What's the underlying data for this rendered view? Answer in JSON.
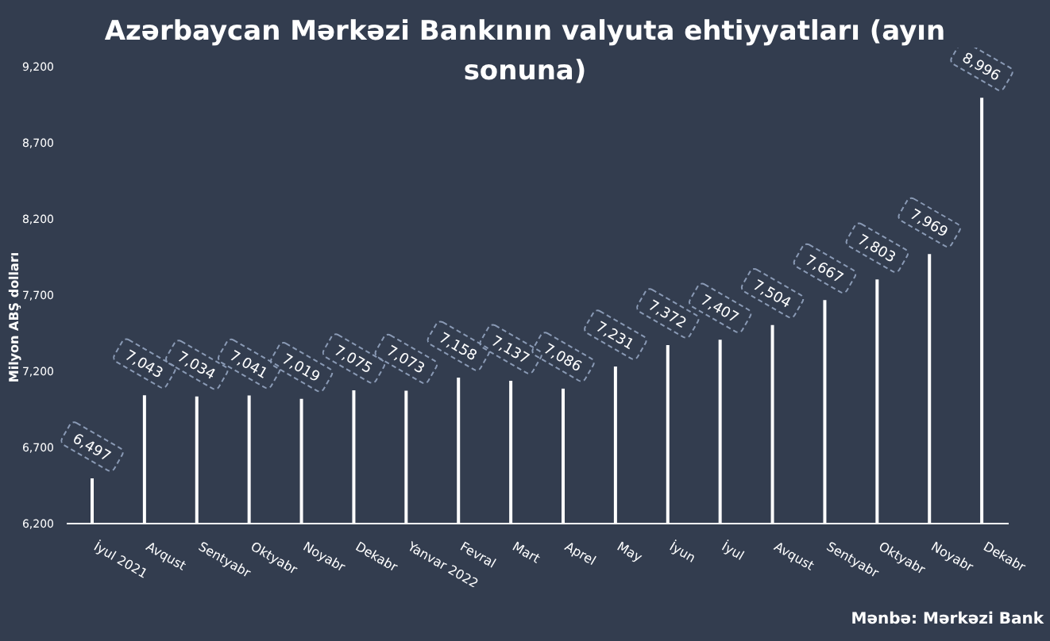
{
  "chart_data": {
    "type": "bar",
    "title": "Azərbaycan Mərkəzi Bankının valyuta ehtiyyatları (ayın sonuna)",
    "ylabel": "Milyon ABŞ dolları",
    "categories": [
      "İyul 2021",
      "Avqust",
      "Sentyabr",
      "Oktyabr",
      "Noyabr",
      "Dekabr",
      "Yanvar  2022",
      "Fevral",
      "Mart",
      "Aprel",
      "May",
      "İyun",
      "İyul",
      "Avqust",
      "Sentyabr",
      "Oktyabr",
      "Noyabr",
      "Dekabr"
    ],
    "values": [
      6497,
      7043,
      7034,
      7041,
      7019,
      7075,
      7073,
      7158,
      7137,
      7086,
      7231,
      7372,
      7407,
      7504,
      7667,
      7803,
      7969,
      8996
    ],
    "value_labels": [
      "6,497",
      "7,043",
      "7,034",
      "7,041",
      "7,019",
      "7,075",
      "7,073",
      "7,158",
      "7,137",
      "7,086",
      "7,231",
      "7,372",
      "7,407",
      "7,504",
      "7,667",
      "7,803",
      "7,969",
      "8,996"
    ],
    "color": "#ffffff",
    "ylim": [
      6200,
      9200
    ],
    "yticks": [
      {
        "value": 6200,
        "label": "6,200"
      },
      {
        "value": 6700,
        "label": "6,700"
      },
      {
        "value": 7200,
        "label": "7,200"
      },
      {
        "value": 7700,
        "label": "7,700"
      },
      {
        "value": 8200,
        "label": "8,200"
      },
      {
        "value": 8700,
        "label": "8,700"
      },
      {
        "value": 9200,
        "label": "9,200"
      }
    ],
    "annotations": [
      "Mənbə: Mərkəzi Bank"
    ]
  }
}
